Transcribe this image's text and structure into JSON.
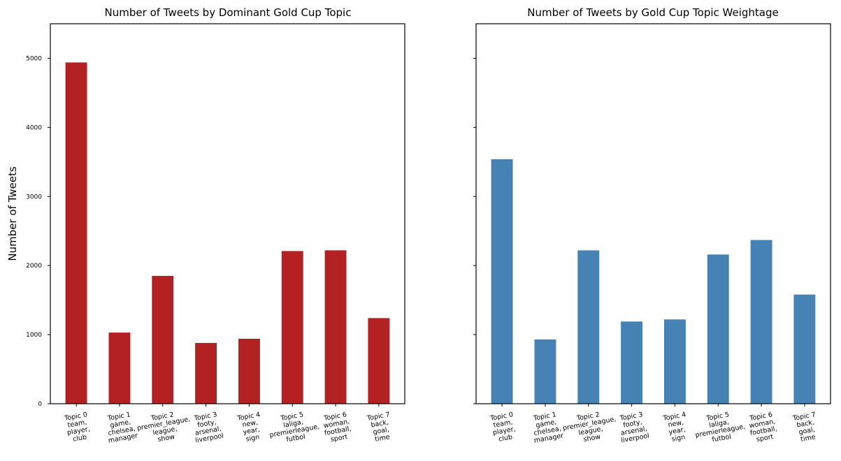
{
  "chart_data": [
    {
      "type": "bar",
      "title": "Number of Tweets by Dominant Gold Cup Topic",
      "xlabel": "",
      "ylabel": "Number of Tweets",
      "ylim": [
        0,
        5500
      ],
      "yticks": [
        0,
        1000,
        2000,
        3000,
        4000,
        5000
      ],
      "grid": false,
      "color": "#b22222",
      "categories": [
        [
          "Topic 0",
          "team,",
          "player,",
          "club"
        ],
        [
          "Topic 1",
          "game,",
          "chelsea,",
          "manager"
        ],
        [
          "Topic 2",
          "premier_league,",
          "league,",
          "show"
        ],
        [
          "Topic 3",
          "footy,",
          "arsenal,",
          "liverpool"
        ],
        [
          "Topic 4",
          "new,",
          "year,",
          "sign"
        ],
        [
          "Topic 5",
          "laliga,",
          "premierleague,",
          "futbol"
        ],
        [
          "Topic 6",
          "woman,",
          "football,",
          "sport"
        ],
        [
          "Topic 7",
          "back,",
          "goal,",
          "time"
        ]
      ],
      "values": [
        4940,
        1030,
        1850,
        880,
        940,
        2210,
        2220,
        1240
      ]
    },
    {
      "type": "bar",
      "title": "Number of Tweets by Gold Cup Topic Weightage",
      "xlabel": "",
      "ylabel": "",
      "ylim": [
        0,
        5500
      ],
      "yticks": [
        0,
        1000,
        2000,
        3000,
        4000,
        5000
      ],
      "show_ytick_labels": false,
      "grid": false,
      "color": "#4682b4",
      "categories": [
        [
          "Topic 0",
          "team,",
          "player,",
          "club"
        ],
        [
          "Topic 1",
          "game,",
          "chelsea,",
          "manager"
        ],
        [
          "Topic 2",
          "premier_league,",
          "league,",
          "show"
        ],
        [
          "Topic 3",
          "footy,",
          "arsenal,",
          "liverpool"
        ],
        [
          "Topic 4",
          "new,",
          "year,",
          "sign"
        ],
        [
          "Topic 5",
          "laliga,",
          "premierleague,",
          "futbol"
        ],
        [
          "Topic 6",
          "woman,",
          "football,",
          "sport"
        ],
        [
          "Topic 7",
          "back,",
          "goal,",
          "time"
        ]
      ],
      "values": [
        3540,
        930,
        2220,
        1190,
        1220,
        2160,
        2370,
        1580
      ]
    }
  ]
}
